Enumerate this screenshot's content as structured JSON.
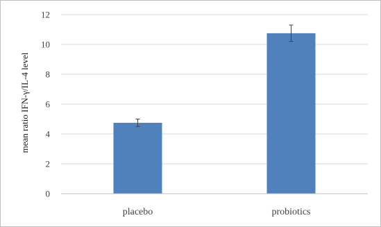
{
  "chart_data": {
    "type": "bar",
    "categories": [
      "placebo",
      "probiotics"
    ],
    "values": [
      4.75,
      10.75
    ],
    "error": [
      0.25,
      0.55
    ],
    "ylabel": "mean ratio IFN-γ/IL-4 level",
    "xlabel": "",
    "ylim": [
      0,
      12
    ],
    "yticks": [
      0,
      2,
      4,
      6,
      8,
      10,
      12
    ],
    "grid": true,
    "legend": "none",
    "bar_color": "#4f81bd",
    "grid_color": "#d9d9d9",
    "errorbar_color": "#404040"
  }
}
